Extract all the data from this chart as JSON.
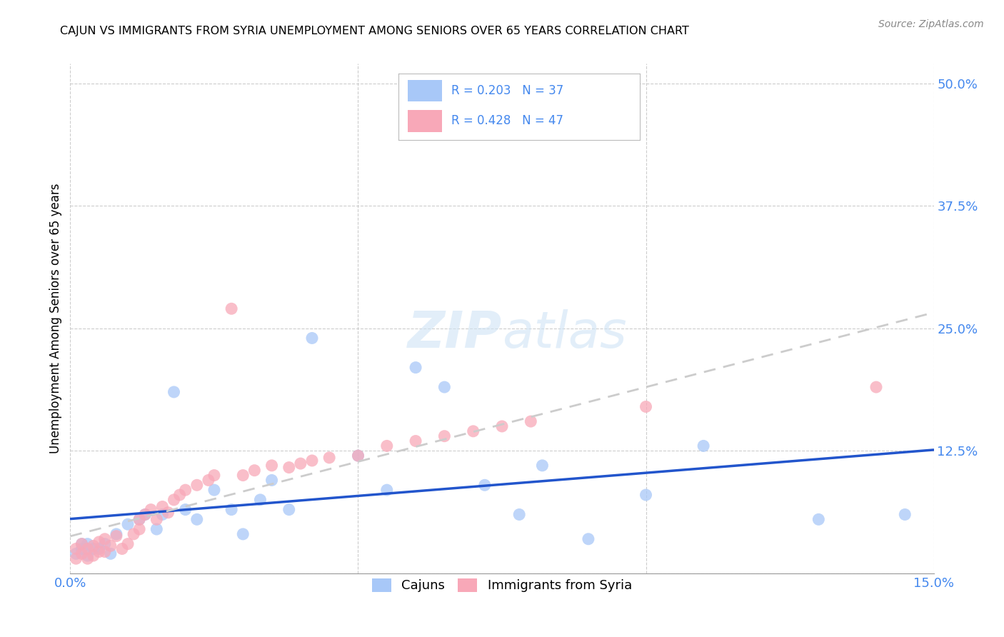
{
  "title": "CAJUN VS IMMIGRANTS FROM SYRIA UNEMPLOYMENT AMONG SENIORS OVER 65 YEARS CORRELATION CHART",
  "source": "Source: ZipAtlas.com",
  "ylabel": "Unemployment Among Seniors over 65 years",
  "xlim": [
    0.0,
    0.15
  ],
  "ylim": [
    0.0,
    0.52
  ],
  "cajun_color": "#a8c8f8",
  "syria_color": "#f8a8b8",
  "cajun_line_color": "#2255cc",
  "syria_line_color": "#dd4477",
  "tick_label_color": "#4488ee",
  "cajun_R": 0.203,
  "cajun_N": 37,
  "syria_R": 0.428,
  "syria_N": 47,
  "cajun_label": "Cajuns",
  "syria_label": "Immigrants from Syria",
  "background_color": "#ffffff",
  "grid_color": "#cccccc",
  "cajun_x": [
    0.001,
    0.002,
    0.002,
    0.003,
    0.003,
    0.004,
    0.005,
    0.006,
    0.007,
    0.008,
    0.01,
    0.012,
    0.013,
    0.015,
    0.016,
    0.018,
    0.02,
    0.022,
    0.025,
    0.028,
    0.03,
    0.033,
    0.035,
    0.038,
    0.042,
    0.05,
    0.055,
    0.06,
    0.065,
    0.072,
    0.078,
    0.082,
    0.09,
    0.1,
    0.11,
    0.13,
    0.145
  ],
  "cajun_y": [
    0.02,
    0.025,
    0.03,
    0.018,
    0.03,
    0.025,
    0.025,
    0.03,
    0.02,
    0.04,
    0.05,
    0.055,
    0.06,
    0.045,
    0.06,
    0.185,
    0.065,
    0.055,
    0.085,
    0.065,
    0.04,
    0.075,
    0.095,
    0.065,
    0.24,
    0.12,
    0.085,
    0.21,
    0.19,
    0.09,
    0.06,
    0.11,
    0.035,
    0.08,
    0.13,
    0.055,
    0.06
  ],
  "syria_x": [
    0.001,
    0.001,
    0.002,
    0.002,
    0.003,
    0.003,
    0.004,
    0.004,
    0.005,
    0.005,
    0.006,
    0.006,
    0.007,
    0.008,
    0.009,
    0.01,
    0.011,
    0.012,
    0.012,
    0.013,
    0.014,
    0.015,
    0.016,
    0.017,
    0.018,
    0.019,
    0.02,
    0.022,
    0.024,
    0.025,
    0.028,
    0.03,
    0.032,
    0.035,
    0.038,
    0.04,
    0.042,
    0.045,
    0.05,
    0.055,
    0.06,
    0.065,
    0.07,
    0.075,
    0.08,
    0.1,
    0.14
  ],
  "syria_y": [
    0.015,
    0.025,
    0.02,
    0.03,
    0.015,
    0.025,
    0.018,
    0.028,
    0.022,
    0.032,
    0.022,
    0.035,
    0.028,
    0.038,
    0.025,
    0.03,
    0.04,
    0.045,
    0.055,
    0.06,
    0.065,
    0.055,
    0.068,
    0.062,
    0.075,
    0.08,
    0.085,
    0.09,
    0.095,
    0.1,
    0.27,
    0.1,
    0.105,
    0.11,
    0.108,
    0.112,
    0.115,
    0.118,
    0.12,
    0.13,
    0.135,
    0.14,
    0.145,
    0.15,
    0.155,
    0.17,
    0.19
  ]
}
